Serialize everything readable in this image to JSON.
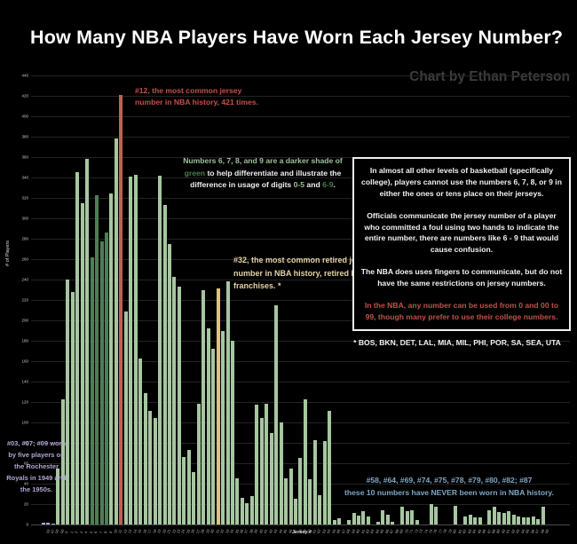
{
  "title": "How Many NBA Players Have Worn Each Jersey Number?",
  "credit": "Chart by Ethan Peterson",
  "colors": {
    "background": "#000000",
    "bar_green": "#a6c6a0",
    "bar_dark_green": "#4f7d55",
    "bar_red": "#c25e54",
    "bar_gold": "#ddc47b",
    "bar_lavender": "#b4a6d4",
    "grid": "#232323",
    "annot_red": "#c05248",
    "annot_light_green": "#9cc299",
    "annot_dark_green": "#4c7d4c",
    "annot_white": "#f0f0f0",
    "annot_gold": "#e4d3a4",
    "annot_lavender": "#b4a6d4",
    "annot_blue": "#7fa7c5"
  },
  "chart_data": {
    "type": "bar",
    "title": "How Many NBA Players Have Worn Each Jersey Number?",
    "xlabel": "Jersey #",
    "ylabel": "# of Players",
    "ylim": [
      0,
      440
    ],
    "ytick_step": 20,
    "grid": true,
    "categories": [
      "03",
      "07",
      "09",
      "00",
      "0",
      "1",
      "2",
      "3",
      "4",
      "5",
      "6",
      "7",
      "8",
      "9",
      "10",
      "11",
      "12",
      "13",
      "14",
      "15",
      "16",
      "17",
      "18",
      "19",
      "20",
      "21",
      "22",
      "23",
      "24",
      "25",
      "26",
      "27",
      "28",
      "29",
      "30",
      "31",
      "32",
      "33",
      "34",
      "35",
      "36",
      "37",
      "38",
      "39",
      "40",
      "41",
      "42",
      "43",
      "44",
      "45",
      "46",
      "47",
      "48",
      "49",
      "50",
      "51",
      "52",
      "53",
      "54",
      "55",
      "56",
      "57",
      "58",
      "59",
      "60",
      "61",
      "62",
      "63",
      "64",
      "65",
      "66",
      "67",
      "68",
      "69",
      "70",
      "71",
      "72",
      "73",
      "74",
      "75",
      "76",
      "77",
      "78",
      "79",
      "80",
      "81",
      "82",
      "83",
      "84",
      "85",
      "86",
      "87",
      "88",
      "89",
      "90",
      "91",
      "92",
      "93",
      "94",
      "95",
      "96",
      "97",
      "98",
      "99"
    ],
    "values": [
      2,
      2,
      1,
      55,
      123,
      240,
      228,
      345,
      315,
      358,
      262,
      323,
      277,
      286,
      324,
      378,
      421,
      209,
      341,
      343,
      163,
      129,
      111,
      104,
      342,
      313,
      275,
      243,
      233,
      66,
      73,
      51,
      118,
      230,
      192,
      172,
      231,
      190,
      238,
      180,
      45,
      26,
      21,
      28,
      117,
      104,
      118,
      90,
      215,
      100,
      45,
      55,
      25,
      65,
      123,
      44,
      83,
      29,
      82,
      111,
      4,
      6,
      0,
      4,
      11,
      9,
      13,
      8,
      0,
      3,
      14,
      10,
      3,
      0,
      17,
      13,
      14,
      4,
      0,
      0,
      20,
      17,
      0,
      0,
      0,
      18,
      0,
      8,
      10,
      7,
      7,
      0,
      14,
      17,
      12,
      11,
      13,
      10,
      8,
      7,
      7,
      8,
      5,
      17
    ],
    "color_overrides": {
      "03": "bar_lavender",
      "07": "bar_lavender",
      "09": "bar_lavender",
      "6": "bar_dark_green",
      "7": "bar_dark_green",
      "8": "bar_dark_green",
      "9": "bar_dark_green",
      "12": "bar_red",
      "32": "bar_gold"
    },
    "legend": "none"
  },
  "annotations": {
    "red12": "#12, the most common jersey\nnumber in NBA history, 421 times.",
    "green_segments": [
      {
        "t": "Numbers 6, 7, 8, and 9 are a darker shade of ",
        "c": "annot_light_green"
      },
      {
        "t": "green",
        "c": "annot_dark_green"
      },
      {
        "t": " to help differentiate and illustrate the difference in usage of digits ",
        "c": "annot_white"
      },
      {
        "t": "0-5",
        "c": "annot_light_green"
      },
      {
        "t": " and ",
        "c": "annot_white"
      },
      {
        "t": "6-9",
        "c": "annot_dark_green"
      },
      {
        "t": ".",
        "c": "annot_white"
      }
    ],
    "gold32": "#32, the most common retired jersey number in NBA history, retired by 11 franchises. *",
    "lavender_rochester": "#03, #07; #09 worn by five players on the Rochester Royals in 1949 and the 1950s.",
    "blue_never_line1": "#58, #64, #69, #74, #75, #78, #79, #80, #82; #87",
    "blue_never_line2": "these 10 numbers have NEVER been worn in NBA history.",
    "infobox_paragraphs": [
      "In almost all other levels of basketball (specifically college), players cannot use the numbers 6, 7, 8, or 9 in either the ones or tens place on their jerseys.",
      "Officials communicate the jersey number of a player who committed a foul using two hands to indicate the entire number, there are numbers like 6 - 9 that would cause confusion.",
      "The NBA does uses fingers to communicate, but do not have the same restrictions on jersey numbers.",
      "In the NBA, any number can be used from 0 and 00 to 99, though many prefer to use their college numbers."
    ],
    "asterisk_note": "* BOS, BKN, DET, LAL, MIA, MIL, PHI, POR, SA, SEA, UTA"
  }
}
